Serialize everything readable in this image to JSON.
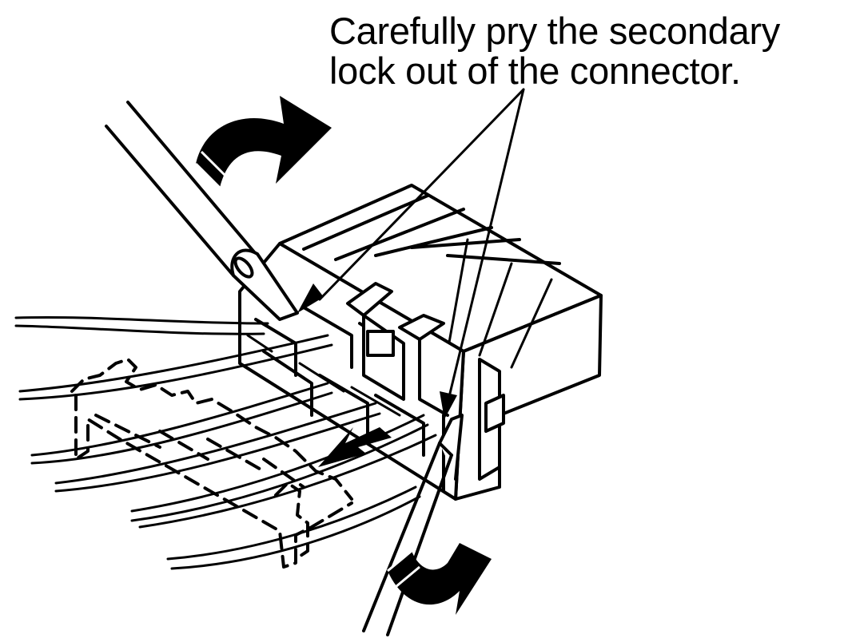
{
  "caption": {
    "line1": "Carefully pry the secondary",
    "line2": "lock out of the connector."
  },
  "colors": {
    "ink": "#000000",
    "paper": "#ffffff"
  },
  "icons": [
    "rotate-arrow-icon",
    "pull-arrow-icon",
    "pointer-arrow-icon"
  ]
}
